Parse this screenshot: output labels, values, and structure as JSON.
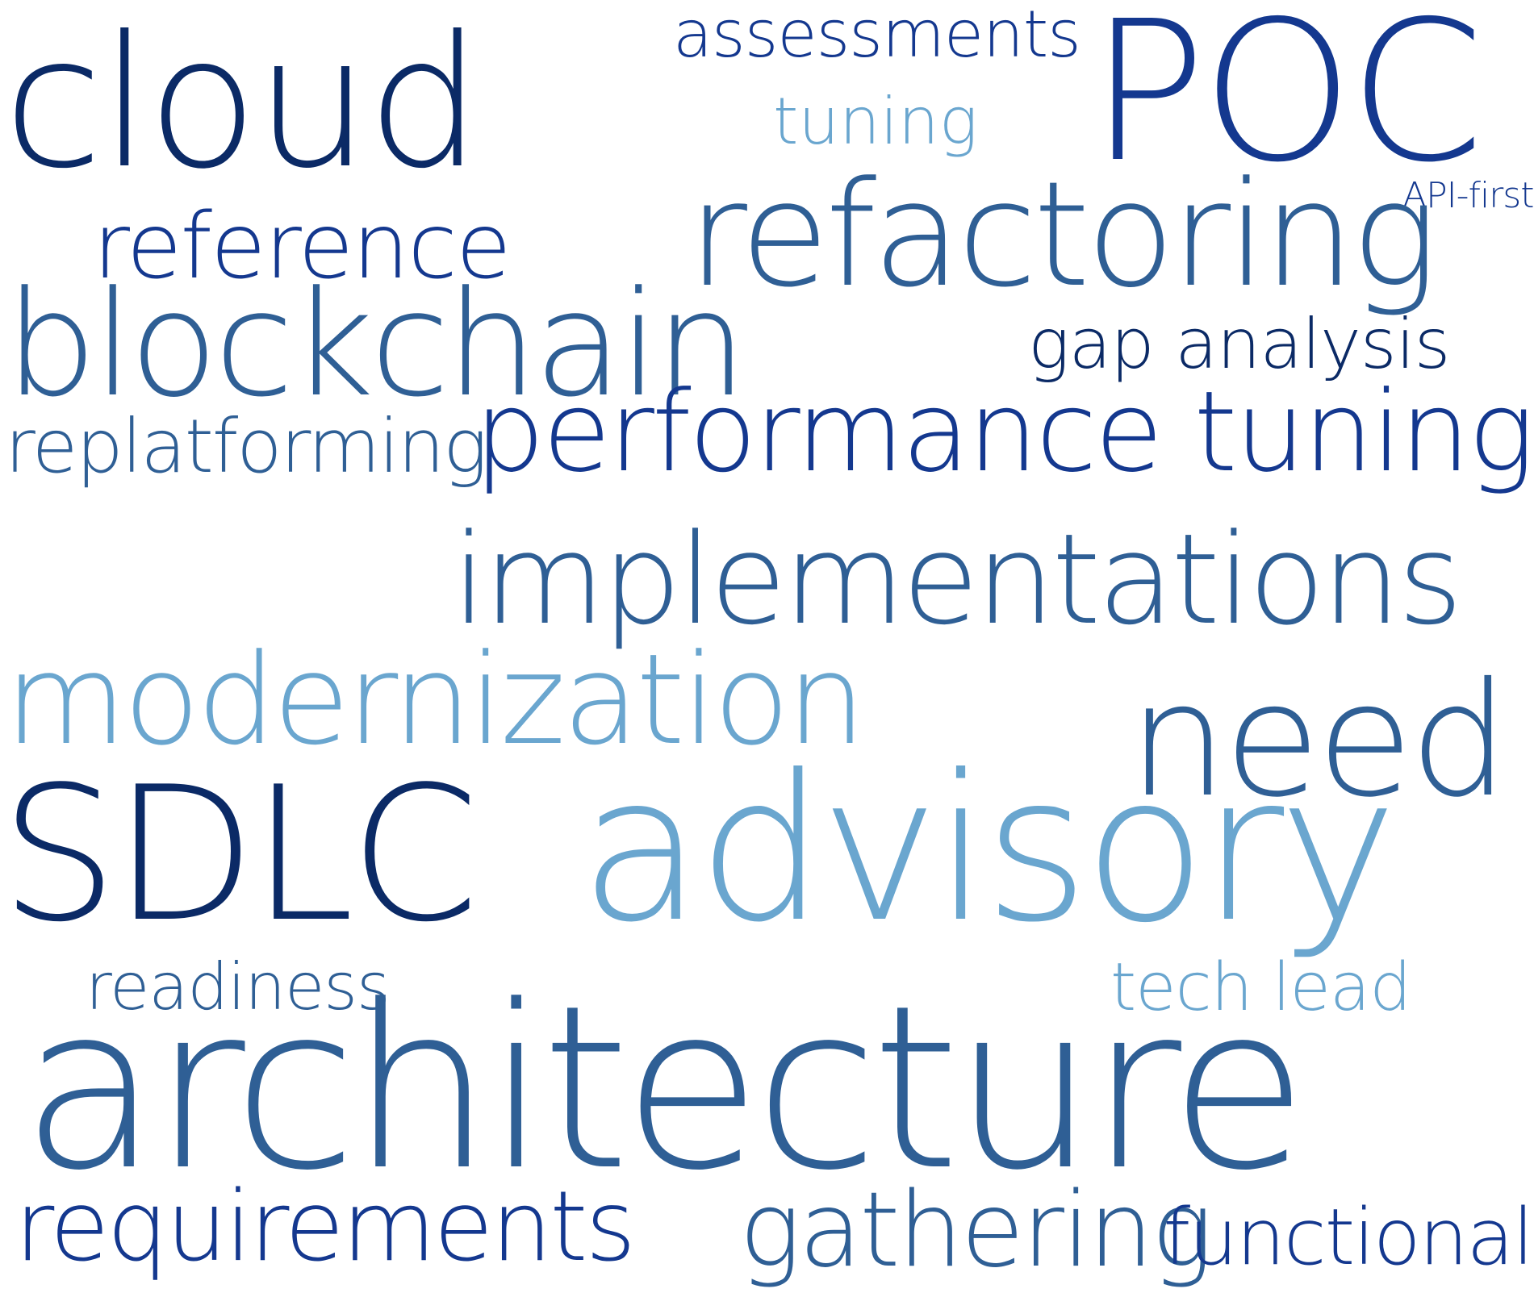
{
  "colors": {
    "navy": "#0b2a66",
    "royal": "#14388f",
    "steel": "#2f5f95",
    "sky": "#6aa6cf",
    "background": "#ffffff"
  },
  "words": [
    {
      "id": "cloud",
      "text": "cloud",
      "color": "navy"
    },
    {
      "id": "assessments",
      "text": "assessments",
      "color": "royal"
    },
    {
      "id": "poc",
      "text": "POC",
      "color": "royal"
    },
    {
      "id": "tuning",
      "text": "tuning",
      "color": "sky"
    },
    {
      "id": "api-first",
      "text": "API-first",
      "color": "royal"
    },
    {
      "id": "reference",
      "text": "reference",
      "color": "royal"
    },
    {
      "id": "refactoring",
      "text": "refactoring",
      "color": "steel"
    },
    {
      "id": "blockchain",
      "text": "blockchain",
      "color": "steel"
    },
    {
      "id": "gap-analysis",
      "text": "gap analysis",
      "color": "navy"
    },
    {
      "id": "performance-tuning",
      "text": "performance tuning",
      "color": "royal"
    },
    {
      "id": "replatforming",
      "text": "replatforming",
      "color": "steel"
    },
    {
      "id": "implementations",
      "text": "implementations",
      "color": "steel"
    },
    {
      "id": "modernization",
      "text": "modernization",
      "color": "sky"
    },
    {
      "id": "need",
      "text": "need",
      "color": "steel"
    },
    {
      "id": "sdlc",
      "text": "SDLC",
      "color": "navy"
    },
    {
      "id": "advisory",
      "text": "advisory",
      "color": "sky"
    },
    {
      "id": "readiness",
      "text": "readiness",
      "color": "steel"
    },
    {
      "id": "tech-lead",
      "text": "tech lead",
      "color": "sky"
    },
    {
      "id": "architecture",
      "text": "architecture",
      "color": "steel"
    },
    {
      "id": "requirements",
      "text": "requirements",
      "color": "royal"
    },
    {
      "id": "gathering",
      "text": "gathering",
      "color": "steel"
    },
    {
      "id": "functional",
      "text": "functional",
      "color": "royal"
    }
  ]
}
